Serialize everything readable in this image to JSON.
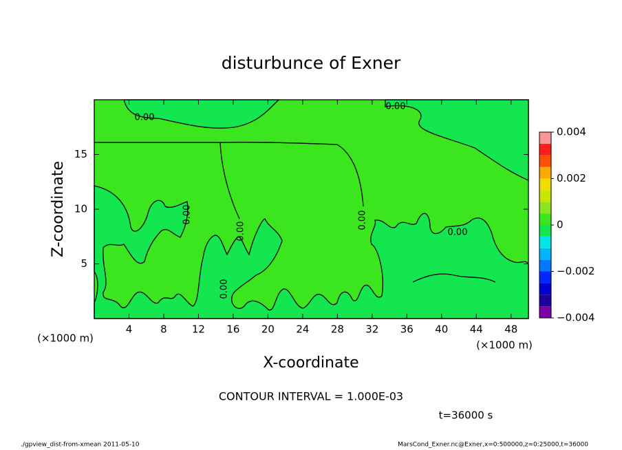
{
  "chart_data": {
    "type": "contour",
    "title": "disturbunce of Exner",
    "xlabel": "X-coordinate",
    "ylabel": "Z-coordinate",
    "x_units": [
      "(×1000 m)",
      "(×1000 m)"
    ],
    "xlim": [
      0,
      50
    ],
    "ylim": [
      0,
      20
    ],
    "xticks": [
      4,
      8,
      12,
      16,
      20,
      24,
      28,
      32,
      36,
      40,
      44,
      48
    ],
    "yticks": [
      5,
      10,
      15
    ],
    "contour_labels": [
      "0.00",
      "0.00",
      "0.00",
      "0.00",
      "0.00",
      "0.00",
      "0.00"
    ],
    "colorbar": {
      "levels": [
        -0.004,
        -0.0035,
        -0.003,
        -0.0025,
        -0.002,
        -0.0015,
        -0.001,
        -0.0005,
        0,
        0.0005,
        0.001,
        0.0015,
        0.002,
        0.0025,
        0.003,
        0.0035,
        0.004
      ],
      "colors": [
        "#8000a8",
        "#1e00a0",
        "#0000d2",
        "#0028ff",
        "#0078ff",
        "#00b4ff",
        "#00e6e6",
        "#14e650",
        "#3ce61e",
        "#8ce61e",
        "#c8e600",
        "#f0dc00",
        "#ffaa00",
        "#ff5000",
        "#ff1e1e",
        "#ff9696"
      ],
      "ticks": [
        {
          "value": 0.004,
          "label": "0.004"
        },
        {
          "value": 0.002,
          "label": "0.002"
        },
        0,
        {
          "value": -0.002,
          "label": "−0.002"
        },
        {
          "value": -0.004,
          "label": "−0.004"
        }
      ]
    },
    "contour_interval": "CONTOUR INTERVAL = 1.000E-03",
    "time": "t=36000 s",
    "footer_left": "./gpview_dist-from-xmean  2011-05-10",
    "footer_right": "MarsCond_Exner.nc@Exner,x=0:500000,z=0:25000,t=36000"
  }
}
